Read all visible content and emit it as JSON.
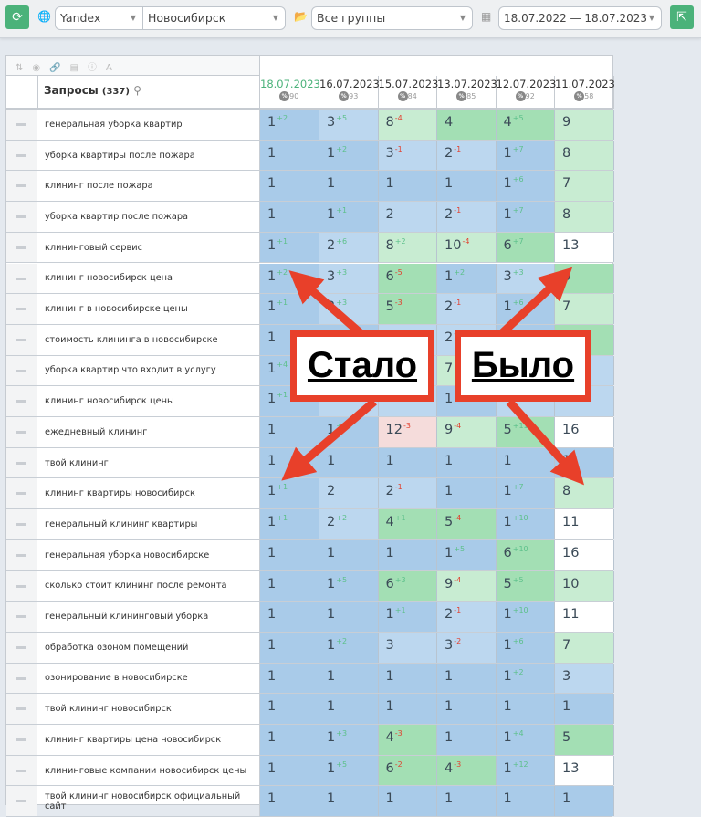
{
  "toolbar": {
    "refresh_icon": "refresh-icon",
    "engine": "Yandex",
    "region": "Новосибирск",
    "group": "Все группы",
    "date_range": "18.07.2022 — 18.07.2023",
    "export_icon": "export-icon"
  },
  "table": {
    "query_header": "Запросы",
    "query_count": "(337)",
    "dates": [
      {
        "date": "18.07.2023",
        "pct": "90"
      },
      {
        "date": "16.07.2023",
        "pct": "93"
      },
      {
        "date": "15.07.2023",
        "pct": "84"
      },
      {
        "date": "13.07.2023",
        "pct": "85"
      },
      {
        "date": "12.07.2023",
        "pct": "92"
      },
      {
        "date": "11.07.2023",
        "pct": "58"
      }
    ],
    "rows": [
      {
        "q": "генеральная уборка квартир",
        "c": [
          [
            "1",
            "+2"
          ],
          [
            "3",
            "+5"
          ],
          [
            "8",
            "-4"
          ],
          [
            "4",
            ""
          ],
          [
            "4",
            "+5"
          ],
          [
            "9",
            ""
          ]
        ]
      },
      {
        "q": "уборка квартиры после пожара",
        "c": [
          [
            "1",
            ""
          ],
          [
            "1",
            "+2"
          ],
          [
            "3",
            "-1"
          ],
          [
            "2",
            "-1"
          ],
          [
            "1",
            "+7"
          ],
          [
            "8",
            ""
          ]
        ]
      },
      {
        "q": "клининг после пожара",
        "c": [
          [
            "1",
            ""
          ],
          [
            "1",
            ""
          ],
          [
            "1",
            ""
          ],
          [
            "1",
            ""
          ],
          [
            "1",
            "+6"
          ],
          [
            "7",
            ""
          ]
        ]
      },
      {
        "q": "уборка квартир после пожара",
        "c": [
          [
            "1",
            ""
          ],
          [
            "1",
            "+1"
          ],
          [
            "2",
            ""
          ],
          [
            "2",
            "-1"
          ],
          [
            "1",
            "+7"
          ],
          [
            "8",
            ""
          ]
        ]
      },
      {
        "q": "клининговый сервис",
        "c": [
          [
            "1",
            "+1"
          ],
          [
            "2",
            "+6"
          ],
          [
            "8",
            "+2"
          ],
          [
            "10",
            "-4"
          ],
          [
            "6",
            "+7"
          ],
          [
            "13",
            ""
          ]
        ]
      },
      {
        "q": "клининг новосибирск цена",
        "c": [
          [
            "1",
            "+2"
          ],
          [
            "3",
            "+3"
          ],
          [
            "6",
            "-5"
          ],
          [
            "1",
            "+2"
          ],
          [
            "3",
            "+3"
          ],
          [
            "6",
            ""
          ]
        ]
      },
      {
        "q": "клининг в новосибирске цены",
        "c": [
          [
            "1",
            "+1"
          ],
          [
            "2",
            "+3"
          ],
          [
            "5",
            "-3"
          ],
          [
            "2",
            "-1"
          ],
          [
            "1",
            "+6"
          ],
          [
            "7",
            ""
          ]
        ]
      },
      {
        "q": "стоимость клининга в новосибирске",
        "c": [
          [
            "1",
            ""
          ],
          [
            "1",
            "+1"
          ],
          [
            "2",
            ""
          ],
          [
            "2",
            "-1"
          ],
          [
            "1",
            ""
          ],
          [
            "5",
            ""
          ]
        ]
      },
      {
        "q": "уборка квартир что входит в услугу",
        "c": [
          [
            "1",
            "+4"
          ],
          [
            "",
            ""
          ],
          [
            "",
            ""
          ],
          [
            "7",
            ""
          ],
          [
            "",
            ""
          ],
          [
            "",
            ""
          ]
        ]
      },
      {
        "q": "клининг новосибирск цены",
        "c": [
          [
            "1",
            "+1"
          ],
          [
            "",
            ""
          ],
          [
            "",
            ""
          ],
          [
            "1",
            ""
          ],
          [
            "",
            ""
          ],
          [
            "",
            ""
          ]
        ]
      },
      {
        "q": "ежедневный клининг",
        "c": [
          [
            "1",
            ""
          ],
          [
            "1",
            "+11"
          ],
          [
            "12",
            "-3"
          ],
          [
            "9",
            "-4"
          ],
          [
            "5",
            "+11"
          ],
          [
            "16",
            ""
          ]
        ]
      },
      {
        "q": "твой клининг",
        "c": [
          [
            "1",
            ""
          ],
          [
            "1",
            ""
          ],
          [
            "1",
            ""
          ],
          [
            "1",
            ""
          ],
          [
            "1",
            ""
          ],
          [
            "1",
            ""
          ]
        ]
      },
      {
        "q": "клининг квартиры новосибирск",
        "c": [
          [
            "1",
            "+1"
          ],
          [
            "2",
            ""
          ],
          [
            "2",
            "-1"
          ],
          [
            "1",
            ""
          ],
          [
            "1",
            "+7"
          ],
          [
            "8",
            ""
          ]
        ]
      },
      {
        "q": "генеральный клининг квартиры",
        "c": [
          [
            "1",
            "+1"
          ],
          [
            "2",
            "+2"
          ],
          [
            "4",
            "+1"
          ],
          [
            "5",
            "-4"
          ],
          [
            "1",
            "+10"
          ],
          [
            "11",
            ""
          ]
        ]
      },
      {
        "q": "генеральная уборка новосибирске",
        "c": [
          [
            "1",
            ""
          ],
          [
            "1",
            ""
          ],
          [
            "1",
            ""
          ],
          [
            "1",
            "+5"
          ],
          [
            "6",
            "+10"
          ],
          [
            "16",
            ""
          ]
        ]
      },
      {
        "q": "сколько стоит клининг после ремонта",
        "c": [
          [
            "1",
            ""
          ],
          [
            "1",
            "+5"
          ],
          [
            "6",
            "+3"
          ],
          [
            "9",
            "-4"
          ],
          [
            "5",
            "+5"
          ],
          [
            "10",
            ""
          ]
        ]
      },
      {
        "q": "генеральный клининговый уборка",
        "c": [
          [
            "1",
            ""
          ],
          [
            "1",
            ""
          ],
          [
            "1",
            "+1"
          ],
          [
            "2",
            "-1"
          ],
          [
            "1",
            "+10"
          ],
          [
            "11",
            ""
          ]
        ]
      },
      {
        "q": "обработка озоном помещений",
        "c": [
          [
            "1",
            ""
          ],
          [
            "1",
            "+2"
          ],
          [
            "3",
            ""
          ],
          [
            "3",
            "-2"
          ],
          [
            "1",
            "+6"
          ],
          [
            "7",
            ""
          ]
        ]
      },
      {
        "q": "озонирование в новосибирске",
        "c": [
          [
            "1",
            ""
          ],
          [
            "1",
            ""
          ],
          [
            "1",
            ""
          ],
          [
            "1",
            ""
          ],
          [
            "1",
            "+2"
          ],
          [
            "3",
            ""
          ]
        ]
      },
      {
        "q": "твой клининг новосибирск",
        "c": [
          [
            "1",
            ""
          ],
          [
            "1",
            ""
          ],
          [
            "1",
            ""
          ],
          [
            "1",
            ""
          ],
          [
            "1",
            ""
          ],
          [
            "1",
            ""
          ]
        ]
      },
      {
        "q": "клининг квартиры цена новосибирск",
        "c": [
          [
            "1",
            ""
          ],
          [
            "1",
            "+3"
          ],
          [
            "4",
            "-3"
          ],
          [
            "1",
            ""
          ],
          [
            "1",
            "+4"
          ],
          [
            "5",
            ""
          ]
        ]
      },
      {
        "q": "клининговые компании новосибирск цены",
        "c": [
          [
            "1",
            ""
          ],
          [
            "1",
            "+5"
          ],
          [
            "6",
            "-2"
          ],
          [
            "4",
            "-3"
          ],
          [
            "1",
            "+12"
          ],
          [
            "13",
            ""
          ]
        ]
      },
      {
        "q": "твой клининг новосибирск официальный сайт",
        "c": [
          [
            "1",
            ""
          ],
          [
            "1",
            ""
          ],
          [
            "1",
            ""
          ],
          [
            "1",
            ""
          ],
          [
            "1",
            ""
          ],
          [
            "1",
            ""
          ]
        ]
      }
    ]
  },
  "annotations": {
    "now": "Стало",
    "before": "Было",
    "color": "#e8402a"
  }
}
